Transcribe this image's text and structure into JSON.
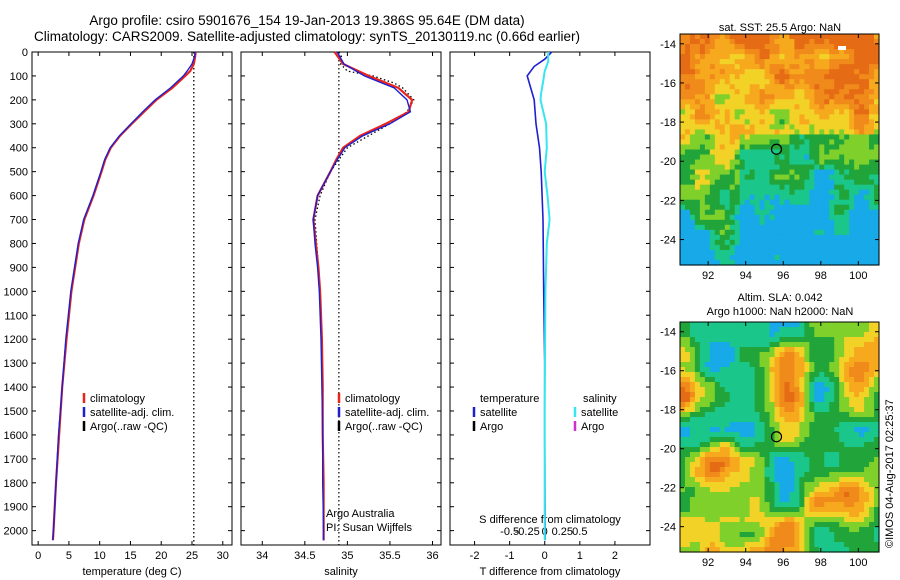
{
  "header": {
    "line1": "Argo profile: csiro 5901676_154 19-Jan-2013 19.386S 95.64E (DM data)",
    "line2": "Climatology: CARS2009. Satellite-adjusted climatology: synTS_20130119.nc (0.66d earlier)"
  },
  "colors": {
    "climatology": "#e8241c",
    "satellite": "#1f1fd0",
    "argo": "#000000",
    "sat_salinity": "#35e6ee",
    "argo_salinity": "#d12fd1"
  },
  "chart_data": [
    {
      "type": "line",
      "name": "temperature",
      "xlabel": "temperature (deg C)",
      "ylabel": "",
      "xlim": [
        -1,
        31.5
      ],
      "ylim": [
        2060,
        0
      ],
      "xticks": [
        0,
        5,
        10,
        15,
        20,
        25,
        30
      ],
      "yticks": [
        0,
        100,
        200,
        300,
        400,
        500,
        600,
        700,
        800,
        900,
        1000,
        1100,
        1200,
        1300,
        1400,
        1500,
        1600,
        1700,
        1800,
        1900,
        2000
      ],
      "legend": {
        "position": "bottom-center",
        "entries": [
          "climatology",
          "satellite-adj. clim.",
          "Argo(..raw -QC)"
        ]
      },
      "series": [
        {
          "name": "climatology",
          "depth": [
            0,
            20,
            50,
            80,
            100,
            150,
            200,
            250,
            300,
            350,
            400,
            450,
            500,
            600,
            700,
            800,
            900,
            1000,
            1200,
            1400,
            1600,
            1800,
            2000,
            2040
          ],
          "values": [
            25.6,
            25.5,
            25.3,
            24.7,
            23.9,
            21.8,
            19.2,
            17.2,
            15.2,
            13.3,
            11.8,
            10.9,
            10.3,
            9.0,
            7.5,
            6.6,
            6.0,
            5.4,
            4.6,
            3.9,
            3.4,
            2.9,
            2.5,
            2.4
          ]
        },
        {
          "name": "satellite-adj. clim.",
          "depth": [
            0,
            20,
            50,
            80,
            100,
            150,
            200,
            250,
            300,
            350,
            400,
            450,
            500,
            600,
            700,
            800,
            900,
            1000,
            1200,
            1400,
            1600,
            1800,
            2000,
            2040
          ],
          "values": [
            25.5,
            25.4,
            25.0,
            24.2,
            23.6,
            21.5,
            19.0,
            17.0,
            15.1,
            13.2,
            11.7,
            10.8,
            10.2,
            8.9,
            7.4,
            6.5,
            5.9,
            5.3,
            4.5,
            3.9,
            3.3,
            2.9,
            2.5,
            2.4
          ]
        },
        {
          "name": "Argo(..raw -QC)",
          "depth": [
            0,
            2060
          ],
          "values": [
            25.3,
            25.3
          ]
        }
      ]
    },
    {
      "type": "line",
      "name": "salinity",
      "xlabel": "salinity",
      "ylabel": "",
      "xlim": [
        33.75,
        36.1
      ],
      "ylim": [
        2060,
        0
      ],
      "xticks": [
        34,
        34.5,
        35,
        35.5,
        36
      ],
      "legend": {
        "position": "bottom-center",
        "entries": [
          "climatology",
          "satellite-adj. clim.",
          "Argo(..raw -QC)"
        ]
      },
      "annotation": [
        "Argo Australia",
        "PI: Susan Wijffels"
      ],
      "series": [
        {
          "name": "climatology",
          "depth": [
            0,
            50,
            100,
            150,
            200,
            250,
            300,
            350,
            400,
            450,
            500,
            600,
            700,
            800,
            900,
            1000,
            1200,
            1400,
            1600,
            1800,
            2000,
            2040
          ],
          "values": [
            34.85,
            34.95,
            35.25,
            35.6,
            35.76,
            35.72,
            35.45,
            35.15,
            34.95,
            34.87,
            34.8,
            34.65,
            34.6,
            34.63,
            34.66,
            34.68,
            34.7,
            34.71,
            34.71,
            34.72,
            34.72,
            34.72
          ]
        },
        {
          "name": "satellite-adj. clim.",
          "depth": [
            0,
            50,
            100,
            150,
            200,
            250,
            300,
            350,
            400,
            450,
            500,
            600,
            700,
            800,
            900,
            1000,
            1200,
            1400,
            1600,
            1800,
            2000,
            2040
          ],
          "values": [
            34.88,
            34.96,
            35.2,
            35.55,
            35.7,
            35.74,
            35.5,
            35.18,
            34.97,
            34.88,
            34.8,
            34.65,
            34.6,
            34.62,
            34.65,
            34.67,
            34.69,
            34.7,
            34.71,
            34.71,
            34.72,
            34.72
          ]
        },
        {
          "name": "Argo(..raw -QC)",
          "depth": [
            0,
            20,
            50,
            80,
            100,
            130,
            150,
            200,
            250,
            300,
            400,
            500,
            600,
            700,
            800,
            900,
            1000,
            1200,
            1600,
            2000,
            2040
          ],
          "values": [
            34.9,
            34.93,
            34.92,
            35.0,
            35.3,
            35.55,
            35.65,
            35.78,
            35.7,
            35.5,
            35.0,
            34.8,
            34.68,
            34.62,
            34.64,
            34.66,
            34.68,
            34.7,
            34.71,
            34.72,
            34.72
          ]
        }
      ]
    },
    {
      "type": "line",
      "name": "differences",
      "xlabel": "T difference from climatology",
      "xlabel_top": "S difference from climatology",
      "ylabel": "",
      "xlim": [
        -2.7,
        3.0
      ],
      "ylim": [
        2060,
        0
      ],
      "xticks": [
        -2,
        -1,
        0,
        1,
        2
      ],
      "xticks_top": [
        -0.5,
        -0.25,
        0,
        0.25,
        0.5
      ],
      "xticklabels_top": [
        "-0.5",
        "-0.25",
        "0",
        "0.25",
        "0.5"
      ],
      "legend": {
        "position": "bottom-center",
        "temperature_heading": "temperature",
        "salinity_heading": "salinity",
        "entries": [
          "satellite",
          "Argo",
          "satellite",
          "Argo"
        ]
      },
      "series": [
        {
          "name": "temperature satellite",
          "depth": [
            0,
            30,
            60,
            100,
            150,
            200,
            300,
            400,
            500,
            700,
            1000,
            1300,
            1600,
            2000,
            2040
          ],
          "values": [
            0.2,
            0.0,
            -0.3,
            -0.5,
            -0.4,
            -0.3,
            -0.25,
            -0.15,
            -0.1,
            -0.05,
            -0.03,
            0,
            0,
            0.01,
            0.01
          ]
        },
        {
          "name": "salinity satellite",
          "depth": [
            0,
            40,
            80,
            120,
            170,
            200,
            250,
            300,
            400,
            500,
            600,
            700,
            800,
            900,
            1000,
            1500,
            2000,
            2040
          ],
          "values": [
            0.05,
            0.05,
            0.0,
            -0.02,
            -0.05,
            -0.06,
            -0.02,
            0.02,
            0.03,
            0.0,
            0.04,
            0.07,
            0.03,
            0.02,
            0.01,
            0,
            0,
            0
          ]
        }
      ]
    },
    {
      "type": "heatmap",
      "name": "sat-sst-map",
      "title": "sat. SST: 25.5 Argo: NaN",
      "xlim": [
        90.5,
        101.1
      ],
      "ylim": [
        -25.3,
        -13.5
      ],
      "xticks": [
        92,
        94,
        96,
        98,
        100
      ],
      "yticks": [
        -14,
        -16,
        -18,
        -20,
        -22,
        -24
      ],
      "marker": {
        "lon": 95.64,
        "lat": -19.386
      }
    },
    {
      "type": "heatmap",
      "name": "altim-sla-map",
      "title": "Altim. SLA: 0.042",
      "subtitle": "Argo h1000: NaN h2000: NaN",
      "xlim": [
        90.5,
        101.1
      ],
      "ylim": [
        -25.3,
        -13.5
      ],
      "xticks": [
        92,
        94,
        96,
        98,
        100
      ],
      "yticks": [
        -14,
        -16,
        -18,
        -20,
        -22,
        -24
      ],
      "marker": {
        "lon": 95.64,
        "lat": -19.386
      }
    }
  ],
  "footer": {
    "credit": "©IMOS 04-Aug-2017 02:25:37"
  }
}
